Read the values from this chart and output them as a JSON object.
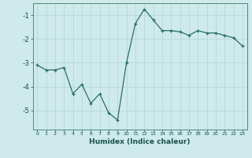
{
  "x": [
    0,
    1,
    2,
    3,
    4,
    5,
    6,
    7,
    8,
    9,
    10,
    11,
    12,
    13,
    14,
    15,
    16,
    17,
    18,
    19,
    20,
    21,
    22,
    23
  ],
  "y": [
    -3.1,
    -3.3,
    -3.3,
    -3.2,
    -4.3,
    -3.9,
    -4.7,
    -4.3,
    -5.1,
    -5.4,
    -3.0,
    -1.35,
    -0.75,
    -1.2,
    -1.65,
    -1.65,
    -1.7,
    -1.85,
    -1.65,
    -1.75,
    -1.75,
    -1.85,
    -1.95,
    -2.3
  ],
  "xlabel": "Humidex (Indice chaleur)",
  "ylim": [
    -5.8,
    -0.5
  ],
  "xlim": [
    -0.5,
    23.5
  ],
  "yticks": [
    -5,
    -4,
    -3,
    -2,
    -1
  ],
  "xticks": [
    0,
    1,
    2,
    3,
    4,
    5,
    6,
    7,
    8,
    9,
    10,
    11,
    12,
    13,
    14,
    15,
    16,
    17,
    18,
    19,
    20,
    21,
    22,
    23
  ],
  "line_color": "#2a6e63",
  "marker_color": "#2a6e63",
  "bg_color": "#ceeaea",
  "grid_color": "#b8d8d8",
  "xlabel_color": "#1a5050",
  "tick_color": "#1a5050"
}
